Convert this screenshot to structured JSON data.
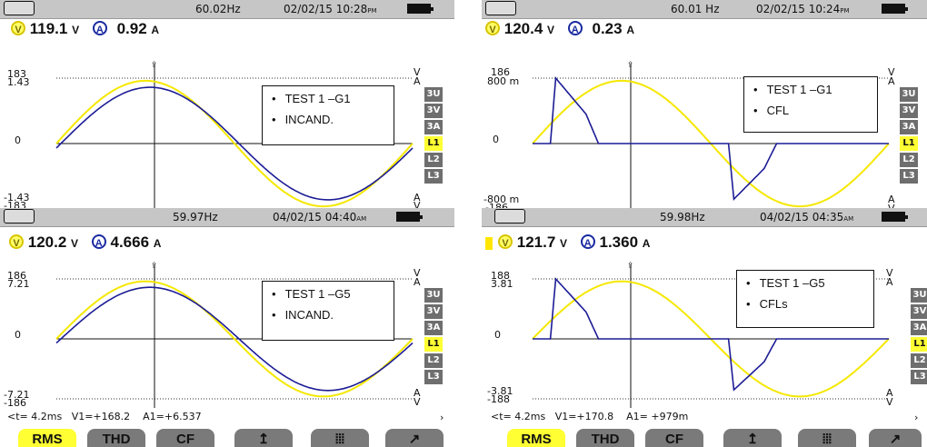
{
  "panels": [
    {
      "status": {
        "freq": "60.02Hz",
        "datetime": "02/02/15 10:28",
        "ampm": "PM"
      },
      "meas": {
        "v": "119.1",
        "v_unit": "V",
        "a": "0.92",
        "a_unit": "A"
      },
      "scale": {
        "v_top": "183",
        "a_top": "1.43",
        "zero": "0",
        "a_bot": "-1.43",
        "v_bot": "-183"
      },
      "legend": [
        "TEST 1 –G1",
        "INCAND."
      ],
      "side_buttons": [
        "3U",
        "3V",
        "3A",
        "L1",
        "L2",
        "L3"
      ],
      "side_selected": "L1"
    },
    {
      "status": {
        "freq": "60.01 Hz",
        "datetime": "02/02/15 10:24",
        "ampm": "PM"
      },
      "meas": {
        "v": "120.4",
        "v_unit": "V",
        "a": "0.23",
        "a_unit": "A"
      },
      "scale": {
        "v_top": "186",
        "a_top": "800 m",
        "zero": "0",
        "a_bot": "-800 m",
        "v_bot": "-186"
      },
      "legend": [
        "TEST 1 –G1",
        "CFL"
      ],
      "side_buttons": [
        "3U",
        "3V",
        "3A",
        "L1",
        "L2",
        "L3"
      ],
      "side_selected": "L1"
    },
    {
      "status": {
        "freq": "59.97Hz",
        "datetime": "04/02/15 04:40",
        "ampm": "AM"
      },
      "meas": {
        "v": "120.2",
        "v_unit": "V",
        "a": "4.666",
        "a_unit": "A"
      },
      "scale": {
        "v_top": "186",
        "a_top": "7.21",
        "zero": "0",
        "a_bot": "-7.21",
        "v_bot": "-186"
      },
      "legend": [
        "TEST 1 –G5",
        "INCAND."
      ],
      "side_buttons": [
        "3U",
        "3V",
        "3A",
        "L1",
        "L2",
        "L3"
      ],
      "side_selected": "L1",
      "cursor": {
        "t": "<t=  4.2ms",
        "v1": "V1=+168.2",
        "a1": "A1=+6.537"
      }
    },
    {
      "status": {
        "freq": "59.98Hz",
        "datetime": "04/02/15 04:35",
        "ampm": "AM"
      },
      "meas": {
        "v": "121.7",
        "v_unit": "V",
        "a": "1.360",
        "a_unit": "A"
      },
      "scale": {
        "v_top": "188",
        "a_top": "3.81",
        "zero": "0",
        "a_bot": "-3.81",
        "v_bot": "-188"
      },
      "legend": [
        "TEST 1 –G5",
        "CFLs"
      ],
      "side_buttons": [
        "3U",
        "3V",
        "3A",
        "L1",
        "L2",
        "L3"
      ],
      "side_selected": "L1",
      "cursor": {
        "t": "<t=  4.2ms",
        "v1": "V1=+170.8",
        "a1": "A1= +979m"
      }
    }
  ],
  "softkeys": [
    "RMS",
    "THD",
    "CF",
    "",
    "",
    ""
  ],
  "softkey_selected": "RMS",
  "colors": {
    "voltage": "#f5e800",
    "current": "#1c1c96",
    "selected": "#ffff33"
  }
}
